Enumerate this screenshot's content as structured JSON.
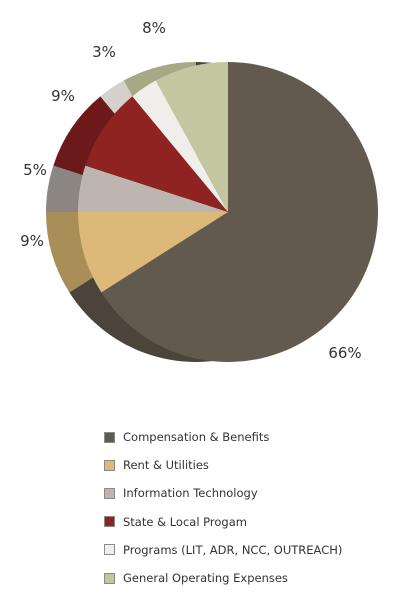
{
  "chart_data": {
    "type": "pie",
    "categories": [
      "Compensation & Benefits",
      "Rent & Utilities",
      "Information Technology",
      "State & Local Progam",
      "Programs (LIT, ADR, NCC, OUTREACH)",
      "General Operating Expenses"
    ],
    "values": [
      66,
      9,
      5,
      9,
      3,
      8
    ],
    "value_labels": [
      "66%",
      "9%",
      "5%",
      "9%",
      "3%",
      "8%"
    ],
    "colors": [
      "#635a4f",
      "#dcb978",
      "#bdb6b0",
      "#8f2322",
      "#f0eeeb",
      "#c3c7a0"
    ],
    "edge_colors": [
      "#4b443b",
      "#a98e58",
      "#8c8682",
      "#6b1a19",
      "#d4d1cc",
      "#a5a986"
    ],
    "start": "12 o'clock",
    "direction": "clockwise",
    "style": "3d",
    "legend_position": "bottom"
  }
}
